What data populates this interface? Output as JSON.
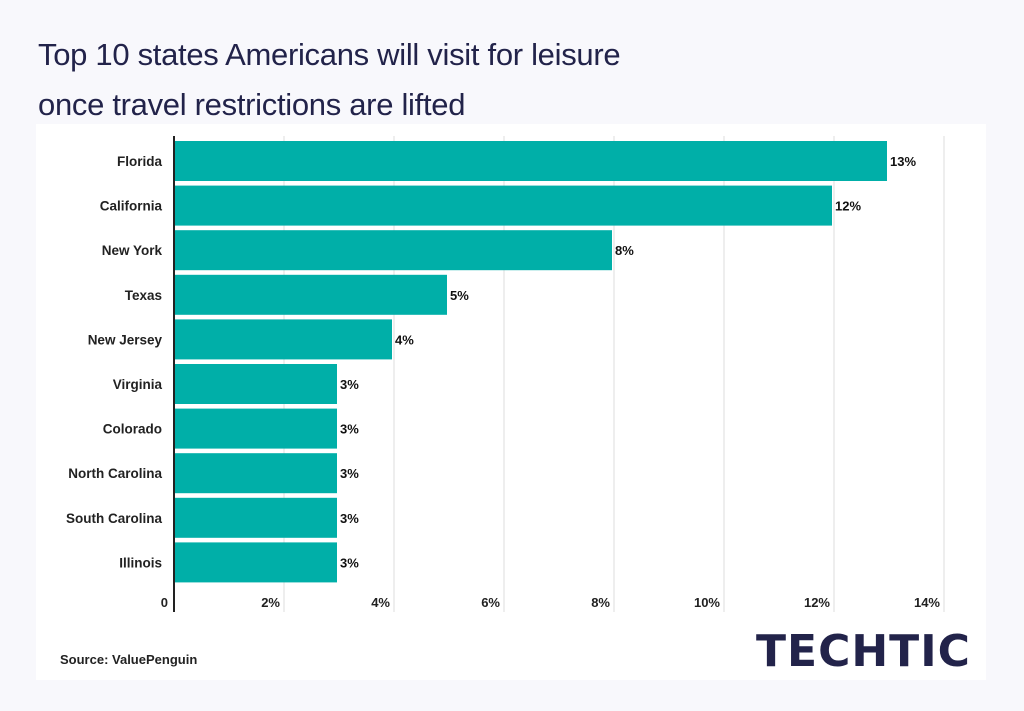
{
  "title_line1": "Top 10 states Americans will visit for leisure",
  "title_line2": "once travel restrictions are lifted",
  "source": "Source: ValuePenguin",
  "logo": "TECHTIC",
  "colors": {
    "bar": "#00afa8",
    "title": "#22234a",
    "grid": "#dddddd"
  },
  "chart_data": {
    "type": "bar",
    "orientation": "horizontal",
    "categories": [
      "Florida",
      "California",
      "New York",
      "Texas",
      "New Jersey",
      "Virginia",
      "Colorado",
      "North Carolina",
      "South Carolina",
      "Illinois"
    ],
    "values": [
      13,
      12,
      8,
      5,
      4,
      3,
      3,
      3,
      3,
      3
    ],
    "data_labels": [
      "13%",
      "12%",
      "8%",
      "5%",
      "4%",
      "3%",
      "3%",
      "3%",
      "3%",
      "3%"
    ],
    "xticks": [
      0,
      2,
      4,
      6,
      8,
      10,
      12,
      14
    ],
    "xtick_labels": [
      "0",
      "2%",
      "4%",
      "6%",
      "8%",
      "10%",
      "12%",
      "14%"
    ],
    "xlim": [
      0,
      14
    ],
    "grid": "vertical",
    "unit": "%"
  }
}
